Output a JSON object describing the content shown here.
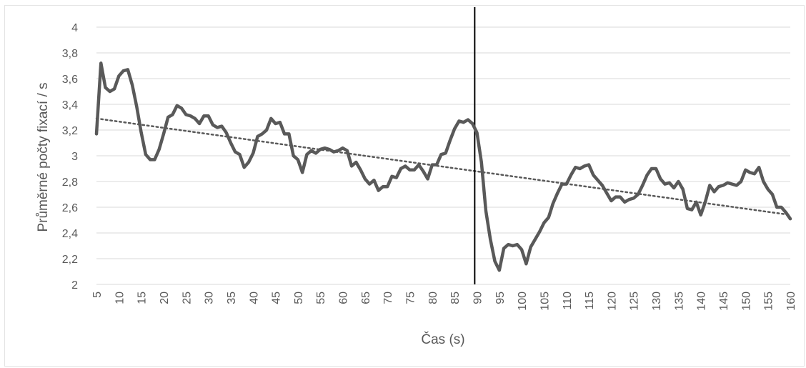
{
  "chart_data": {
    "type": "line",
    "xlabel": "Čas (s)",
    "ylabel": "Průměrné počty fixací / s",
    "xlim": [
      5,
      160
    ],
    "ylim": [
      2,
      4
    ],
    "x_ticks": [
      5,
      10,
      15,
      20,
      25,
      30,
      35,
      40,
      45,
      50,
      55,
      60,
      65,
      70,
      75,
      80,
      85,
      90,
      95,
      100,
      105,
      110,
      115,
      120,
      125,
      130,
      135,
      140,
      145,
      150,
      155,
      160
    ],
    "y_ticks": [
      "2",
      "2,2",
      "2,4",
      "2,6",
      "2,8",
      "3",
      "3,2",
      "3,4",
      "3,6",
      "3,8",
      "4"
    ],
    "y_tick_values": [
      2,
      2.2,
      2.4,
      2.6,
      2.8,
      3,
      3.2,
      3.4,
      3.6,
      3.8,
      4
    ],
    "grid": "horizontal",
    "series_color": "#595959",
    "trendline": {
      "style": "dotted",
      "x": [
        5,
        160
      ],
      "y": [
        3.29,
        2.54
      ]
    },
    "vertical_marker_x": 89.5,
    "series": [
      {
        "x": [
          5,
          6,
          7,
          8,
          9,
          10,
          11,
          12,
          13,
          14,
          15,
          16,
          17,
          18,
          19,
          20,
          21,
          22,
          23,
          24,
          25,
          26,
          27,
          28,
          29,
          30,
          31,
          32,
          33,
          34,
          35,
          36,
          37,
          38,
          39,
          40,
          41,
          42,
          43,
          44,
          45,
          46,
          47,
          48,
          49,
          50,
          51,
          52,
          53,
          54,
          55,
          56,
          57,
          58,
          59,
          60,
          61,
          62,
          63,
          64,
          65,
          66,
          67,
          68,
          69,
          70,
          71,
          72,
          73,
          74,
          75,
          76,
          77,
          78,
          79,
          80,
          81,
          82,
          83,
          84,
          85,
          86,
          87,
          88,
          89,
          90,
          91,
          92,
          93,
          94,
          95,
          96,
          97,
          98,
          99,
          100,
          101,
          102,
          103,
          104,
          105,
          106,
          107,
          108,
          109,
          110,
          111,
          112,
          113,
          114,
          115,
          116,
          117,
          118,
          119,
          120,
          121,
          122,
          123,
          124,
          125,
          126,
          127,
          128,
          129,
          130,
          131,
          132,
          133,
          134,
          135,
          136,
          137,
          138,
          139,
          140,
          141,
          142,
          143,
          144,
          145,
          146,
          147,
          148,
          149,
          150,
          151,
          152,
          153,
          154,
          155,
          156,
          157,
          158,
          159,
          160
        ],
        "values": [
          3.17,
          3.72,
          3.53,
          3.5,
          3.52,
          3.62,
          3.66,
          3.67,
          3.55,
          3.38,
          3.18,
          3.01,
          2.97,
          2.97,
          3.05,
          3.17,
          3.3,
          3.32,
          3.39,
          3.37,
          3.32,
          3.31,
          3.29,
          3.25,
          3.31,
          3.31,
          3.24,
          3.22,
          3.23,
          3.18,
          3.1,
          3.03,
          3.01,
          2.91,
          2.95,
          3.02,
          3.15,
          3.17,
          3.2,
          3.29,
          3.25,
          3.26,
          3.17,
          3.17,
          3.0,
          2.97,
          2.87,
          3.01,
          3.04,
          3.02,
          3.05,
          3.06,
          3.05,
          3.03,
          3.04,
          3.06,
          3.04,
          2.92,
          2.95,
          2.89,
          2.82,
          2.78,
          2.81,
          2.73,
          2.76,
          2.76,
          2.84,
          2.83,
          2.9,
          2.92,
          2.89,
          2.89,
          2.93,
          2.88,
          2.82,
          2.93,
          2.93,
          3.01,
          3.02,
          3.12,
          3.21,
          3.27,
          3.26,
          3.28,
          3.25,
          3.18,
          2.95,
          2.57,
          2.35,
          2.18,
          2.11,
          2.28,
          2.31,
          2.3,
          2.31,
          2.27,
          2.16,
          2.29,
          2.35,
          2.41,
          2.48,
          2.52,
          2.63,
          2.71,
          2.78,
          2.78,
          2.85,
          2.91,
          2.9,
          2.92,
          2.93,
          2.85,
          2.81,
          2.77,
          2.71,
          2.65,
          2.68,
          2.68,
          2.64,
          2.66,
          2.67,
          2.7,
          2.77,
          2.85,
          2.9,
          2.9,
          2.82,
          2.78,
          2.79,
          2.75,
          2.8,
          2.74,
          2.59,
          2.58,
          2.64,
          2.54,
          2.64,
          2.77,
          2.72,
          2.76,
          2.77,
          2.79,
          2.78,
          2.77,
          2.8,
          2.89,
          2.87,
          2.86,
          2.91,
          2.8,
          2.74,
          2.7,
          2.6,
          2.6,
          2.56,
          2.51
        ]
      }
    ]
  }
}
